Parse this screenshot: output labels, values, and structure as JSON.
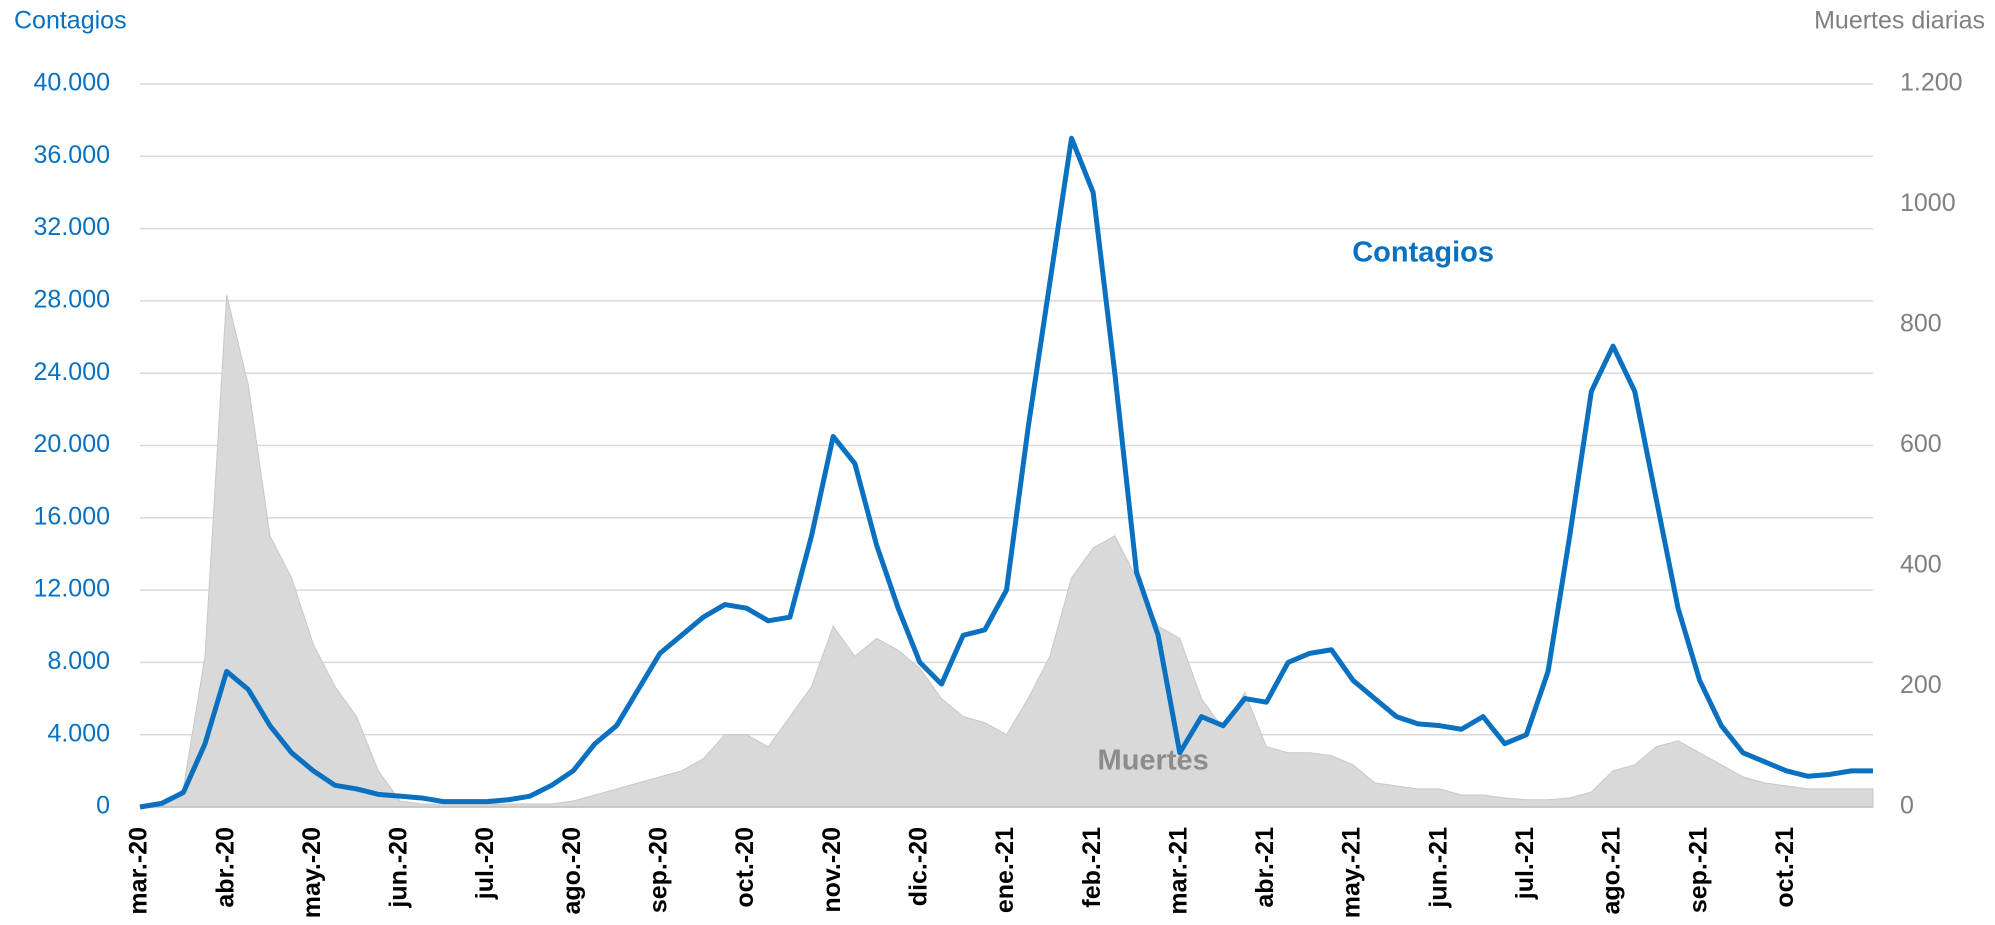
{
  "chart_data": {
    "type": "line-area",
    "y_title": "Contagios",
    "y2_title": "Muertes diarias",
    "annotations": [
      {
        "text": "Contagios",
        "series": 0,
        "index": 50
      },
      {
        "text": "Muertes",
        "series": 1,
        "index": 44
      }
    ],
    "categories": [
      "mar.-20",
      null,
      null,
      null,
      "abr.-20",
      null,
      null,
      null,
      "may.-20",
      null,
      null,
      null,
      "jun.-20",
      null,
      null,
      null,
      "jul.-20",
      null,
      null,
      null,
      "ago.-20",
      null,
      null,
      null,
      "sep.-20",
      null,
      null,
      null,
      "oct.-20",
      null,
      null,
      null,
      "nov.-20",
      null,
      null,
      null,
      "dic.-20",
      null,
      null,
      null,
      "ene.-21",
      null,
      null,
      null,
      "feb.-21",
      null,
      null,
      null,
      "mar.-21",
      null,
      null,
      null,
      "abr.-21",
      null,
      null,
      null,
      "may.-21",
      null,
      null,
      null,
      "jun.-21",
      null,
      null,
      null,
      "jul.-21",
      null,
      null,
      null,
      "ago.-21",
      null,
      null,
      null,
      "sep.-21",
      null,
      null,
      null,
      "oct.-21",
      null,
      null,
      null,
      null
    ],
    "series": [
      {
        "name": "Contagios",
        "color": "#0a70c0",
        "kind": "line",
        "axis": "y",
        "values": [
          0,
          200,
          800,
          3500,
          7500,
          6500,
          4500,
          3000,
          2000,
          1200,
          1000,
          700,
          600,
          500,
          300,
          300,
          300,
          400,
          600,
          1200,
          2000,
          3500,
          4500,
          6500,
          8500,
          9500,
          10500,
          11200,
          11000,
          10300,
          10500,
          15000,
          20500,
          19000,
          14500,
          11000,
          8000,
          6800,
          9500,
          9800,
          12000,
          21000,
          29000,
          37000,
          34000,
          24000,
          13000,
          9500,
          3000,
          5000,
          4500,
          6000,
          5800,
          8000,
          8500,
          8700,
          7000,
          6000,
          5000,
          4600,
          4500,
          4300,
          5000,
          3500,
          4000,
          7500,
          15000,
          23000,
          25500,
          23000,
          17000,
          11000,
          7000,
          4500,
          3000,
          2500,
          2000,
          1700,
          1800,
          2000,
          2000
        ]
      },
      {
        "name": "Muertes",
        "color": "#d9d9d9",
        "kind": "area",
        "axis": "y2",
        "values": [
          0,
          0,
          30,
          250,
          850,
          700,
          450,
          380,
          270,
          200,
          150,
          60,
          10,
          5,
          5,
          5,
          5,
          5,
          5,
          5,
          10,
          20,
          30,
          40,
          50,
          60,
          80,
          120,
          120,
          100,
          150,
          200,
          300,
          250,
          280,
          260,
          230,
          180,
          150,
          140,
          120,
          180,
          250,
          380,
          430,
          450,
          380,
          300,
          280,
          180,
          130,
          190,
          100,
          90,
          90,
          85,
          70,
          40,
          35,
          30,
          30,
          20,
          20,
          15,
          12,
          12,
          15,
          25,
          60,
          70,
          100,
          110,
          90,
          70,
          50,
          40,
          35,
          30,
          30,
          30,
          30
        ]
      }
    ],
    "ylim": [
      0,
      40000
    ],
    "yticks": [
      0,
      {
        "value": 4000,
        "label": "4.000"
      },
      {
        "value": 8000,
        "label": "8.000"
      },
      {
        "value": 12000,
        "label": "12.000"
      },
      {
        "value": 16000,
        "label": "16.000"
      },
      {
        "value": 20000,
        "label": "20.000"
      },
      {
        "value": 24000,
        "label": "24.000"
      },
      {
        "value": 28000,
        "label": "28.000"
      },
      {
        "value": 32000,
        "label": "32.000"
      },
      {
        "value": 36000,
        "label": "36.000"
      },
      {
        "value": 40000,
        "label": "40.000"
      }
    ],
    "y2lim": [
      0,
      1200
    ],
    "y2ticks": [
      0,
      200,
      400,
      600,
      800,
      1000,
      {
        "value": 1200,
        "label": "1.200"
      }
    ],
    "grid": true,
    "y_color": "#0a70c0",
    "y2_color": "#808080"
  }
}
